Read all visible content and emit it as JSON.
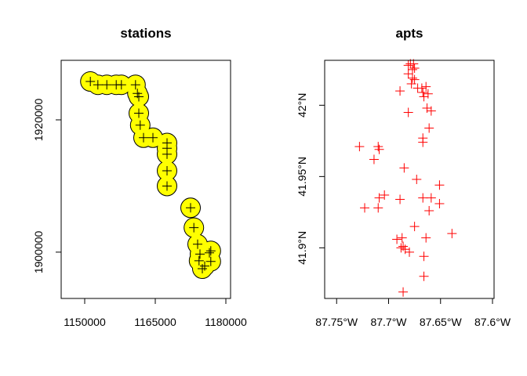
{
  "chart_data": [
    {
      "type": "scatter",
      "title": "stations",
      "xlabel": "",
      "ylabel": "",
      "xlim": [
        1145000,
        1181000
      ],
      "ylim": [
        1893000,
        1929000
      ],
      "x_ticks": [
        1150000,
        1165000,
        1180000
      ],
      "x_tick_labels": [
        "1150000",
        "1165000",
        "1180000"
      ],
      "y_ticks": [
        1900000,
        1920000
      ],
      "y_tick_labels": [
        "1900000",
        "1920000"
      ],
      "buffer_radius": 2000,
      "buffer_fill": "#FFFF00",
      "buffer_stroke": "#000000",
      "point_marker": "+",
      "point_color": "#000000",
      "points": [
        {
          "x": 1151200,
          "y": 1925800
        },
        {
          "x": 1152800,
          "y": 1925300
        },
        {
          "x": 1154700,
          "y": 1925300
        },
        {
          "x": 1156700,
          "y": 1925300
        },
        {
          "x": 1157800,
          "y": 1925300
        },
        {
          "x": 1160800,
          "y": 1925300
        },
        {
          "x": 1161200,
          "y": 1924000
        },
        {
          "x": 1161500,
          "y": 1923500
        },
        {
          "x": 1161500,
          "y": 1921000
        },
        {
          "x": 1161800,
          "y": 1919200
        },
        {
          "x": 1162500,
          "y": 1917300
        },
        {
          "x": 1164500,
          "y": 1917300
        },
        {
          "x": 1167500,
          "y": 1916500
        },
        {
          "x": 1167500,
          "y": 1915700
        },
        {
          "x": 1167500,
          "y": 1914800
        },
        {
          "x": 1167500,
          "y": 1912300
        },
        {
          "x": 1167500,
          "y": 1910000
        },
        {
          "x": 1172500,
          "y": 1906700
        },
        {
          "x": 1173200,
          "y": 1903700
        },
        {
          "x": 1174000,
          "y": 1901200
        },
        {
          "x": 1174500,
          "y": 1899700
        },
        {
          "x": 1174300,
          "y": 1898700
        },
        {
          "x": 1175500,
          "y": 1897900
        },
        {
          "x": 1175000,
          "y": 1897500
        },
        {
          "x": 1176500,
          "y": 1899900
        },
        {
          "x": 1176800,
          "y": 1900200
        },
        {
          "x": 1176800,
          "y": 1898600
        }
      ]
    },
    {
      "type": "scatter",
      "title": "apts",
      "xlabel": "",
      "ylabel": "",
      "xlim": [
        -87.7615,
        -87.5985
      ],
      "ylim": [
        41.8645,
        42.0315
      ],
      "x_ticks": [
        -87.75,
        -87.7,
        -87.65,
        -87.6
      ],
      "x_tick_labels": [
        "87.75°W",
        "87.7°W",
        "87.65°W",
        "87.6°W"
      ],
      "y_ticks": [
        41.9,
        41.95,
        42.0
      ],
      "y_tick_labels": [
        "41.9°N",
        "41.95°N",
        "42°N"
      ],
      "point_marker": "+",
      "point_color": "#FF0000",
      "points": [
        {
          "x": -87.679,
          "y": 42.029
        },
        {
          "x": -87.676,
          "y": 42.029
        },
        {
          "x": -87.681,
          "y": 42.028
        },
        {
          "x": -87.675,
          "y": 42.026
        },
        {
          "x": -87.677,
          "y": 42.025
        },
        {
          "x": -87.681,
          "y": 42.022
        },
        {
          "x": -87.677,
          "y": 42.019
        },
        {
          "x": -87.675,
          "y": 42.018
        },
        {
          "x": -87.678,
          "y": 42.015
        },
        {
          "x": -87.672,
          "y": 42.012
        },
        {
          "x": -87.668,
          "y": 42.012
        },
        {
          "x": -87.664,
          "y": 42.013
        },
        {
          "x": -87.667,
          "y": 42.009
        },
        {
          "x": -87.662,
          "y": 42.008
        },
        {
          "x": -87.666,
          "y": 42.006
        },
        {
          "x": -87.689,
          "y": 42.01
        },
        {
          "x": -87.663,
          "y": 41.998
        },
        {
          "x": -87.659,
          "y": 41.996
        },
        {
          "x": -87.681,
          "y": 41.995
        },
        {
          "x": -87.661,
          "y": 41.984
        },
        {
          "x": -87.667,
          "y": 41.977
        },
        {
          "x": -87.667,
          "y": 41.974
        },
        {
          "x": -87.728,
          "y": 41.971
        },
        {
          "x": -87.71,
          "y": 41.971
        },
        {
          "x": -87.709,
          "y": 41.969
        },
        {
          "x": -87.714,
          "y": 41.962
        },
        {
          "x": -87.685,
          "y": 41.956
        },
        {
          "x": -87.673,
          "y": 41.948
        },
        {
          "x": -87.651,
          "y": 41.944
        },
        {
          "x": -87.704,
          "y": 41.937
        },
        {
          "x": -87.709,
          "y": 41.935
        },
        {
          "x": -87.667,
          "y": 41.935
        },
        {
          "x": -87.659,
          "y": 41.935
        },
        {
          "x": -87.689,
          "y": 41.934
        },
        {
          "x": -87.651,
          "y": 41.931
        },
        {
          "x": -87.723,
          "y": 41.928
        },
        {
          "x": -87.71,
          "y": 41.928
        },
        {
          "x": -87.661,
          "y": 41.926
        },
        {
          "x": -87.675,
          "y": 41.915
        },
        {
          "x": -87.639,
          "y": 41.91
        },
        {
          "x": -87.664,
          "y": 41.907
        },
        {
          "x": -87.687,
          "y": 41.907
        },
        {
          "x": -87.692,
          "y": 41.906
        },
        {
          "x": -87.686,
          "y": 41.901
        },
        {
          "x": -87.688,
          "y": 41.9
        },
        {
          "x": -87.684,
          "y": 41.899
        },
        {
          "x": -87.68,
          "y": 41.897
        },
        {
          "x": -87.666,
          "y": 41.894
        },
        {
          "x": -87.666,
          "y": 41.88
        },
        {
          "x": -87.686,
          "y": 41.869
        }
      ]
    }
  ]
}
